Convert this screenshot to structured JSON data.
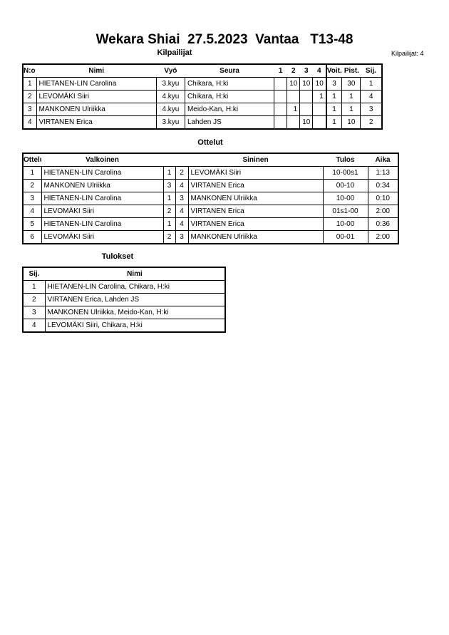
{
  "title": "Wekara Shiai  27.5.2023  Vantaa   T13-48",
  "competitors_section": {
    "heading": "Kilpailijat",
    "count_label": "Kilpailijat: 4",
    "columns": [
      "N:o",
      "Nimi",
      "Vyö",
      "Seura",
      "1",
      "2",
      "3",
      "4",
      "Voit.",
      "Pist.",
      "Sij."
    ],
    "rows": [
      [
        "1",
        "HIETANEN-LIN Carolina",
        "3.kyu",
        "Chikara, H:ki",
        "",
        "10",
        "10",
        "10",
        "3",
        "30",
        "1"
      ],
      [
        "2",
        "LEVOMÄKI Siiri",
        "4.kyu",
        "Chikara, H:ki",
        "",
        "",
        "",
        "1",
        "1",
        "1",
        "4"
      ],
      [
        "3",
        "MANKONEN Ulriikka",
        "4.kyu",
        "Meido-Kan, H:ki",
        "",
        "1",
        "",
        "",
        "1",
        "1",
        "3"
      ],
      [
        "4",
        "VIRTANEN Erica",
        "3.kyu",
        "Lahden JS",
        "",
        "",
        "10",
        "",
        "1",
        "10",
        "2"
      ]
    ]
  },
  "matches_section": {
    "heading": "Ottelut",
    "columns": [
      "Ottelu",
      "Valkoinen",
      "",
      "",
      "Sininen",
      "Tulos",
      "Aika"
    ],
    "rows": [
      [
        "1",
        "HIETANEN-LIN Carolina",
        "1",
        "2",
        "LEVOMÄKI Siiri",
        "10-00s1",
        "1:13"
      ],
      [
        "2",
        "MANKONEN Ulriikka",
        "3",
        "4",
        "VIRTANEN Erica",
        "00-10",
        "0:34"
      ],
      [
        "3",
        "HIETANEN-LIN Carolina",
        "1",
        "3",
        "MANKONEN Ulriikka",
        "10-00",
        "0:10"
      ],
      [
        "4",
        "LEVOMÄKI Siiri",
        "2",
        "4",
        "VIRTANEN Erica",
        "01s1-00",
        "2:00"
      ],
      [
        "5",
        "HIETANEN-LIN Carolina",
        "1",
        "4",
        "VIRTANEN Erica",
        "10-00",
        "0:36"
      ],
      [
        "6",
        "LEVOMÄKI Siiri",
        "2",
        "3",
        "MANKONEN Ulriikka",
        "00-01",
        "2:00"
      ]
    ]
  },
  "results_section": {
    "heading": "Tulokset",
    "columns": [
      "Sij.",
      "Nimi"
    ],
    "rows": [
      [
        "1",
        "HIETANEN-LIN Carolina, Chikara, H:ki"
      ],
      [
        "2",
        "VIRTANEN Erica, Lahden JS"
      ],
      [
        "3",
        "MANKONEN Ulriikka, Meido-Kan, H:ki"
      ],
      [
        "4",
        "LEVOMÄKI Siiri, Chikara, H:ki"
      ]
    ]
  }
}
